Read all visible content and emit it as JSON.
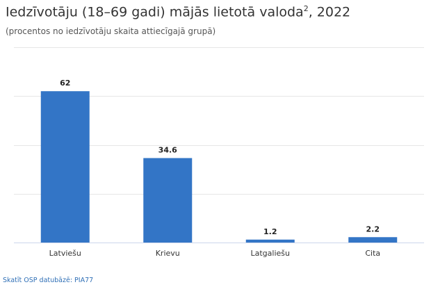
{
  "title_main": "Iedzīvotāju (18–69 gadi) mājās lietotā valoda",
  "title_sup": "2",
  "title_tail": ", 2022",
  "subtitle": "(procentos no iedzīvotāju skaita attiecīgajā grupā)",
  "source_link": "Skatīt OSP datubāzē: PIA77",
  "colors": {
    "bar": "#3375c6",
    "grid": "#e6e6e6",
    "axis": "#ccd6eb"
  },
  "chart_data": {
    "type": "bar",
    "categories": [
      "Latviešu",
      "Krievu",
      "Latgaliešu",
      "Cita"
    ],
    "values": [
      62,
      34.6,
      1.2,
      2.2
    ],
    "value_labels": [
      "62",
      "34.6",
      "1.2",
      "2.2"
    ],
    "title": "Iedzīvotāju (18–69 gadi) mājās lietotā valoda², 2022",
    "subtitle": "(procentos no iedzīvotāju skaita attiecīgajā grupā)",
    "ylim": [
      0,
      80
    ],
    "grid": true,
    "legend": false
  }
}
